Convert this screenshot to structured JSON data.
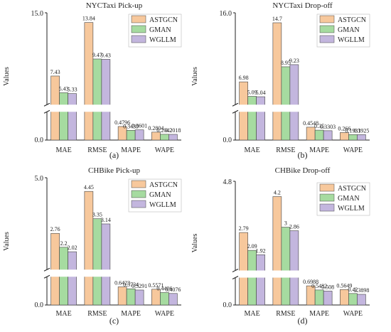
{
  "colors": {
    "ASTGCN": "#F7C89C",
    "GMAN": "#A6DBA0",
    "WGLLM": "#C3B6DE",
    "bar_stroke": "#444444",
    "axis": "#222222"
  },
  "chart_data": [
    {
      "type": "bar",
      "title": "NYCTaxi Pick-up",
      "ylabel": "Values",
      "panel_label": "(a)",
      "categories": [
        "MAE",
        "RMSE",
        "MAPE",
        "WAPE"
      ],
      "series": [
        {
          "name": "ASTGCN",
          "values": [
            7.43,
            13.84,
            0.4796,
            0.2804
          ],
          "labels": [
            "7.43",
            "13.84",
            "0.4796",
            "0.2804"
          ]
        },
        {
          "name": "GMAN",
          "values": [
            5.43,
            9.47,
            0.3439,
            0.2042
          ],
          "labels": [
            "5.43",
            "9.47",
            "0.3439",
            "0.2042"
          ]
        },
        {
          "name": "WGLLM",
          "values": [
            5.33,
            9.43,
            0.3601,
            0.2018
          ],
          "labels": [
            "5.33",
            "9.43",
            "0.3601",
            "0.2018"
          ]
        }
      ],
      "y_ticks": [
        "0.0",
        "15.0"
      ],
      "ylim": [
        0,
        15.0
      ],
      "axis_break": true,
      "legend": "top-right"
    },
    {
      "type": "bar",
      "title": "NYCTaxi Drop-off",
      "ylabel": "Values",
      "panel_label": "(b)",
      "categories": [
        "MAE",
        "RMSE",
        "MAPE",
        "WAPE"
      ],
      "series": [
        {
          "name": "ASTGCN",
          "values": [
            6.98,
            14.7,
            0.4548,
            0.266
          ],
          "labels": [
            "6.98",
            "14.7",
            "0.4548",
            "0.266"
          ]
        },
        {
          "name": "GMAN",
          "values": [
            5.09,
            8.95,
            0.35,
            0.1933
          ],
          "labels": [
            "5.09",
            "8.95",
            "0.35",
            "0.1933"
          ]
        },
        {
          "name": "WGLLM",
          "values": [
            5.04,
            9.23,
            0.3303,
            0.1925
          ],
          "labels": [
            "5.04",
            "9.23",
            "0.3303",
            "0.1925"
          ]
        }
      ],
      "y_ticks": [
        "0.0",
        "16.0"
      ],
      "ylim": [
        0,
        16.0
      ],
      "axis_break": true,
      "legend": "top-right"
    },
    {
      "type": "bar",
      "title": "CHBike Pick-up",
      "ylabel": "Values",
      "panel_label": "(c)",
      "categories": [
        "MAE",
        "RMSE",
        "MAPE",
        "WAPE"
      ],
      "series": [
        {
          "name": "ASTGCN",
          "values": [
            2.76,
            4.45,
            0.6423,
            0.5571
          ],
          "labels": [
            "2.76",
            "4.45",
            "0.6423",
            "0.5571"
          ]
        },
        {
          "name": "GMAN",
          "values": [
            2.2,
            3.35,
            0.5734,
            0.4406
          ],
          "labels": [
            "2.2",
            "3.35",
            "0.5734",
            "0.4406"
          ]
        },
        {
          "name": "WGLLM",
          "values": [
            2.02,
            3.14,
            0.5291,
            0.4076
          ],
          "labels": [
            "2.02",
            "3.14",
            "0.5291",
            "0.4076"
          ]
        }
      ],
      "y_ticks": [
        "0.0",
        "5.0"
      ],
      "ylim": [
        0,
        5.0
      ],
      "axis_break": true,
      "legend": "top-right"
    },
    {
      "type": "bar",
      "title": "CHBike Drop-off",
      "ylabel": "Values",
      "panel_label": "(d)",
      "categories": [
        "MAE",
        "RMSE",
        "MAPE",
        "WAPE"
      ],
      "series": [
        {
          "name": "ASTGCN",
          "values": [
            2.79,
            4.2,
            0.6988,
            0.5649
          ],
          "labels": [
            "2.79",
            "4.2",
            "0.6988",
            "0.5649"
          ]
        },
        {
          "name": "GMAN",
          "values": [
            2.09,
            3.0,
            0.5482,
            0.42
          ],
          "labels": [
            "2.09",
            "3",
            "0.5482",
            "0.42"
          ]
        },
        {
          "name": "WGLLM",
          "values": [
            1.92,
            2.86,
            0.508,
            0.3898
          ],
          "labels": [
            "1.92",
            "2.86",
            "0.508",
            "0.3898"
          ]
        }
      ],
      "y_ticks": [
        "0.0",
        "4.8"
      ],
      "ylim": [
        0,
        4.8
      ],
      "axis_break": true,
      "legend": "top-right"
    }
  ]
}
